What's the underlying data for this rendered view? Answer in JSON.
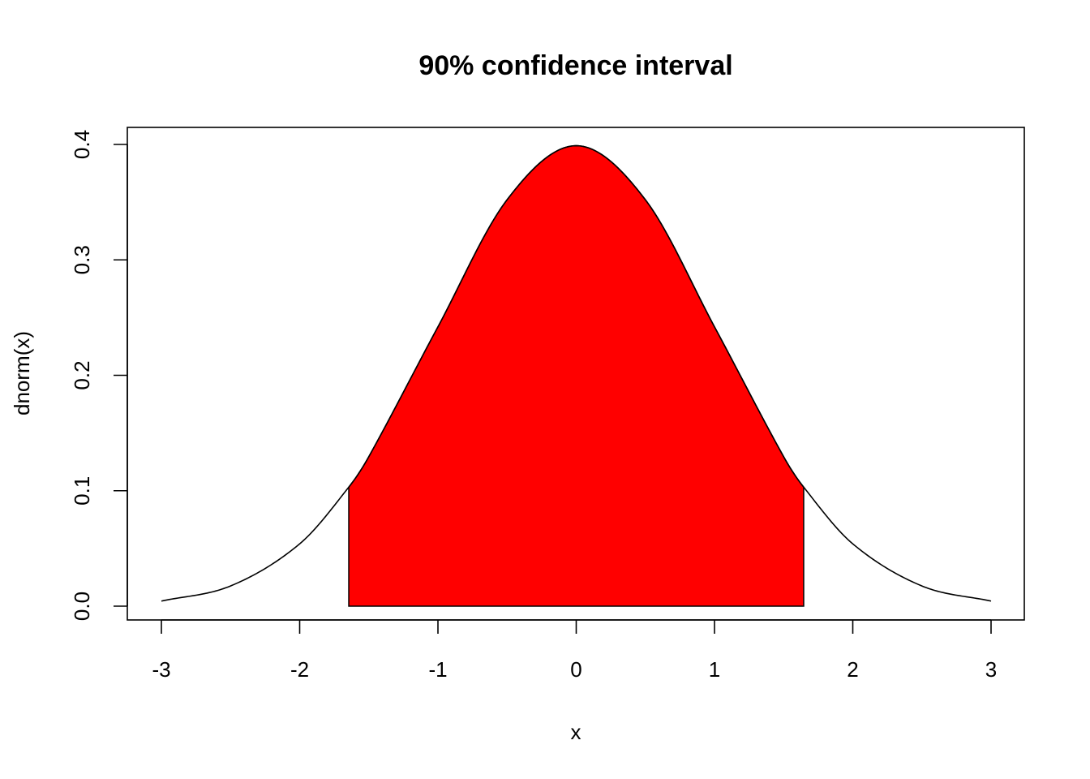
{
  "chart_data": {
    "type": "area",
    "title": "90% confidence interval",
    "xlabel": "x",
    "ylabel": "dnorm(x)",
    "xlim": [
      -3,
      3
    ],
    "ylim": [
      0,
      0.4
    ],
    "x_ticks": [
      "-3",
      "-2",
      "-1",
      "0",
      "1",
      "2",
      "3"
    ],
    "y_ticks": [
      "0.0",
      "0.1",
      "0.2",
      "0.3",
      "0.4"
    ],
    "grid": false,
    "legend": "none",
    "curve": {
      "x": [
        -3,
        -2.5,
        -2,
        -1.645,
        -1.5,
        -1,
        -0.5,
        0,
        0.5,
        1,
        1.5,
        1.645,
        2,
        2.5,
        3
      ],
      "y": [
        0.0044,
        0.0175,
        0.054,
        0.1031,
        0.1295,
        0.242,
        0.3521,
        0.3989,
        0.3521,
        0.242,
        0.1295,
        0.1031,
        0.054,
        0.0175,
        0.0044
      ]
    },
    "shaded_region": {
      "from": -1.645,
      "to": 1.645,
      "color": "#ff0000"
    },
    "line_color": "#000000"
  }
}
